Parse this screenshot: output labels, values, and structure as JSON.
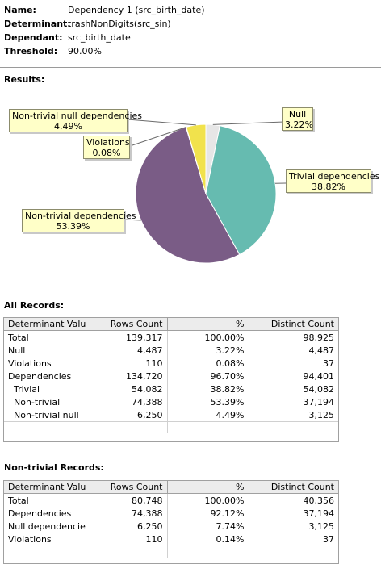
{
  "info": [
    {
      "key": "Name:",
      "value": "Dependency 1 (src_birth_date)"
    },
    {
      "key": "Determinant:",
      "value": "trashNonDigits(src_sin)"
    },
    {
      "key": "Dependant:",
      "value": "src_birth_date"
    },
    {
      "key": "Threshold:",
      "value": "90.00%"
    }
  ],
  "results_title": "Results:",
  "chart_data": {
    "type": "pie",
    "slices": [
      {
        "label": "Null",
        "value": 3.22,
        "pct_label": "3.22%",
        "color": "#e6e6e6"
      },
      {
        "label": "Trivial dependencies",
        "value": 38.82,
        "pct_label": "38.82%",
        "color": "#66bbb0"
      },
      {
        "label": "Non-trivial dependencies",
        "value": 53.39,
        "pct_label": "53.39%",
        "color": "#7a5c86"
      },
      {
        "label": "Violations",
        "value": 0.08,
        "pct_label": "0.08%",
        "color": "#3a3a3a"
      },
      {
        "label": "Non-trivial null dependencies",
        "value": 4.49,
        "pct_label": "4.49%",
        "color": "#f1e24c"
      }
    ]
  },
  "all_records": {
    "title": "All Records:",
    "columns": [
      "Determinant Value",
      "Rows Count",
      "%",
      "Distinct Count"
    ],
    "rows": [
      [
        "Total",
        "139,317",
        "100.00%",
        "98,925"
      ],
      [
        "Null",
        "4,487",
        "3.22%",
        "4,487"
      ],
      [
        "Violations",
        "110",
        "0.08%",
        "37"
      ],
      [
        "Dependencies",
        "134,720",
        "96.70%",
        "94,401"
      ],
      [
        "Trivial",
        "54,082",
        "38.82%",
        "54,082"
      ],
      [
        "Non-trivial",
        "74,388",
        "53.39%",
        "37,194"
      ],
      [
        "Non-trivial null",
        "6,250",
        "4.49%",
        "3,125"
      ]
    ]
  },
  "nontrivial_records": {
    "title": "Non-trivial Records:",
    "columns": [
      "Determinant Value",
      "Rows Count",
      "%",
      "Distinct Count"
    ],
    "rows": [
      [
        "Total",
        "80,748",
        "100.00%",
        "40,356"
      ],
      [
        "Dependencies",
        "74,388",
        "92.12%",
        "37,194"
      ],
      [
        "Null dependencies",
        "6,250",
        "7.74%",
        "3,125"
      ],
      [
        "Violations",
        "110",
        "0.14%",
        "37"
      ]
    ]
  }
}
